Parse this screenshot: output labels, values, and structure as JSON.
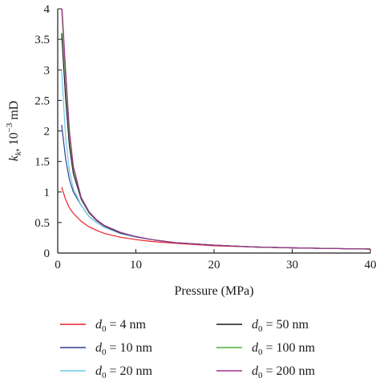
{
  "chart_data": {
    "type": "line",
    "xlabel": "Pressure (MPa)",
    "ylabel": {
      "symbol": "k",
      "subscript": "k",
      "rest": ", 10",
      "exponent": "−3",
      "unit": " mD"
    },
    "xlim": [
      0,
      40
    ],
    "ylim": [
      0,
      4
    ],
    "x_ticks": [
      0,
      10,
      20,
      30,
      40
    ],
    "y_ticks": [
      0,
      0.5,
      1,
      1.5,
      2,
      2.5,
      3,
      3.5,
      4
    ],
    "y_tick_labels": [
      "0",
      "0.5",
      "1",
      "1.5",
      "2",
      "2.5",
      "3",
      "3.5",
      "4"
    ],
    "grid": false,
    "legend_position": "bottom",
    "series": [
      {
        "name": "d0 = 4 nm",
        "name_symbol": "d",
        "name_sub": "0",
        "name_rest": " = 4 nm",
        "color": "#e8202a",
        "x": [
          0.5,
          1,
          1.5,
          2,
          3,
          4,
          5,
          6,
          8,
          10,
          12,
          15,
          20,
          25,
          30,
          35,
          40
        ],
        "y": [
          1.08,
          0.88,
          0.74,
          0.65,
          0.52,
          0.43,
          0.37,
          0.32,
          0.26,
          0.22,
          0.19,
          0.16,
          0.12,
          0.1,
          0.085,
          0.075,
          0.065
        ]
      },
      {
        "name": "d0 = 10 nm",
        "name_symbol": "d",
        "name_sub": "0",
        "name_rest": " = 10 nm",
        "color": "#2e3f8f",
        "x": [
          0.5,
          1,
          1.5,
          2,
          3,
          4,
          5,
          6,
          8,
          10,
          12,
          15,
          20,
          25,
          30,
          35,
          40
        ],
        "y": [
          2.1,
          1.55,
          1.2,
          1.0,
          0.78,
          0.6,
          0.5,
          0.42,
          0.32,
          0.26,
          0.22,
          0.17,
          0.13,
          0.1,
          0.085,
          0.075,
          0.065
        ]
      },
      {
        "name": "d0 = 20 nm",
        "name_symbol": "d",
        "name_sub": "0",
        "name_rest": " = 20 nm",
        "color": "#6cc8ea",
        "x": [
          0.5,
          1,
          1.5,
          2,
          3,
          4,
          5,
          6,
          8,
          10,
          12,
          15,
          20,
          25,
          30,
          35,
          40
        ],
        "y": [
          3.0,
          1.9,
          1.35,
          1.05,
          0.78,
          0.6,
          0.5,
          0.42,
          0.32,
          0.26,
          0.22,
          0.17,
          0.13,
          0.1,
          0.085,
          0.075,
          0.065
        ]
      },
      {
        "name": "d0 = 50 nm",
        "name_symbol": "d",
        "name_sub": "0",
        "name_rest": " = 50 nm",
        "color": "#1a1a1a",
        "x": [
          0.5,
          1,
          1.5,
          2,
          3,
          4,
          5,
          6,
          8,
          10,
          12,
          15,
          20,
          25,
          30,
          35,
          40
        ],
        "y": [
          3.6,
          2.55,
          1.75,
          1.3,
          0.88,
          0.66,
          0.53,
          0.44,
          0.33,
          0.27,
          0.22,
          0.17,
          0.13,
          0.1,
          0.085,
          0.075,
          0.065
        ]
      },
      {
        "name": "d0 = 100 nm",
        "name_symbol": "d",
        "name_sub": "0",
        "name_rest": " = 100 nm",
        "color": "#4caf3a",
        "x": [
          0.5,
          1,
          1.5,
          2,
          3,
          4,
          5,
          6,
          8,
          10,
          12,
          15,
          20,
          25,
          30,
          35,
          40
        ],
        "y": [
          4.0,
          2.85,
          1.9,
          1.38,
          0.9,
          0.67,
          0.54,
          0.45,
          0.34,
          0.27,
          0.22,
          0.17,
          0.13,
          0.1,
          0.085,
          0.075,
          0.065
        ]
      },
      {
        "name": "d0 = 200 nm",
        "name_symbol": "d",
        "name_sub": "0",
        "name_rest": " = 200 nm",
        "color": "#a1308f",
        "x": [
          0.55,
          1,
          1.5,
          2,
          3,
          4,
          5,
          6,
          8,
          10,
          12,
          15,
          20,
          25,
          30,
          35,
          40
        ],
        "y": [
          4.0,
          3.0,
          2.0,
          1.42,
          0.91,
          0.68,
          0.54,
          0.45,
          0.34,
          0.27,
          0.22,
          0.17,
          0.13,
          0.1,
          0.085,
          0.075,
          0.065
        ]
      }
    ]
  }
}
